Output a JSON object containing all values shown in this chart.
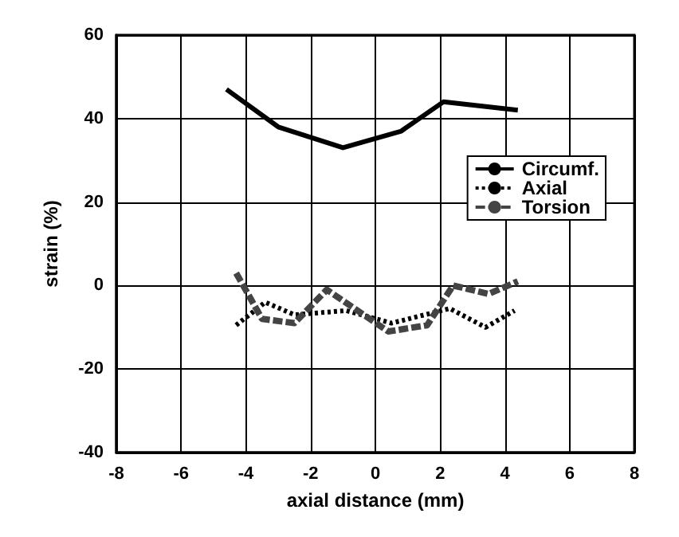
{
  "chart_data": {
    "type": "line",
    "xlabel": "axial distance (mm)",
    "ylabel": "strain (%)",
    "xlim": [
      -8,
      8
    ],
    "xticks": [
      -8,
      -6,
      -4,
      -2,
      0,
      2,
      4,
      6,
      8
    ],
    "ylim": [
      -40,
      60
    ],
    "yticks": [
      -40,
      -20,
      0,
      20,
      40,
      60
    ],
    "grid": true,
    "legend": "right",
    "marker": "none",
    "series": [
      {
        "name": "Circumf.",
        "color": "#000000",
        "line_style": "solid",
        "x": [
          -4.6,
          -3,
          -1,
          0.8,
          2.1,
          4.4
        ],
        "values": [
          47,
          38,
          33,
          37,
          44,
          42
        ]
      },
      {
        "name": "Axial",
        "color": "#000000",
        "line_style": "dotted",
        "x": [
          -4.3,
          -3.4,
          -2.5,
          -0.9,
          0.5,
          2.3,
          3.4,
          4.3
        ],
        "values": [
          -9.5,
          -4,
          -7,
          -6,
          -9,
          -5.5,
          -10,
          -6
        ]
      },
      {
        "name": "Torsion",
        "color": "#444444",
        "line_style": "dashed",
        "x": [
          -4.3,
          -3.5,
          -2.5,
          -1.5,
          0.4,
          1.6,
          2.4,
          3.5,
          4.4
        ],
        "values": [
          3,
          -8,
          -9,
          -1,
          -11,
          -9.5,
          0,
          -2,
          1
        ]
      }
    ]
  }
}
